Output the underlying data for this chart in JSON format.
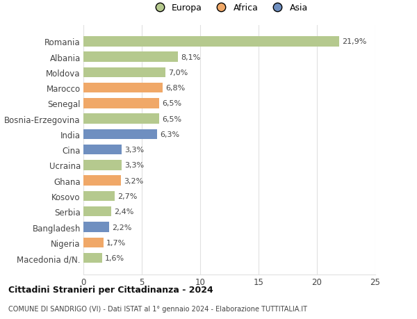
{
  "countries": [
    "Macedonia d/N.",
    "Nigeria",
    "Bangladesh",
    "Serbia",
    "Kosovo",
    "Ghana",
    "Ucraina",
    "Cina",
    "India",
    "Bosnia-Erzegovina",
    "Senegal",
    "Marocco",
    "Moldova",
    "Albania",
    "Romania"
  ],
  "values": [
    1.6,
    1.7,
    2.2,
    2.4,
    2.7,
    3.2,
    3.3,
    3.3,
    6.3,
    6.5,
    6.5,
    6.8,
    7.0,
    8.1,
    21.9
  ],
  "labels": [
    "1,6%",
    "1,7%",
    "2,2%",
    "2,4%",
    "2,7%",
    "3,2%",
    "3,3%",
    "3,3%",
    "6,3%",
    "6,5%",
    "6,5%",
    "6,8%",
    "7,0%",
    "8,1%",
    "21,9%"
  ],
  "continents": [
    "Europa",
    "Africa",
    "Asia",
    "Europa",
    "Europa",
    "Africa",
    "Europa",
    "Asia",
    "Asia",
    "Europa",
    "Africa",
    "Africa",
    "Europa",
    "Europa",
    "Europa"
  ],
  "colors": {
    "Europa": "#b5c98e",
    "Africa": "#f0a868",
    "Asia": "#6f8fc0"
  },
  "title1": "Cittadini Stranieri per Cittadinanza - 2024",
  "title2": "COMUNE DI SANDRIGO (VI) - Dati ISTAT al 1° gennaio 2024 - Elaborazione TUTTITALIA.IT",
  "xlim": [
    0,
    25
  ],
  "xticks": [
    0,
    5,
    10,
    15,
    20,
    25
  ],
  "background_color": "#ffffff",
  "grid_color": "#e0e0e0",
  "legend_items": [
    "Europa",
    "Africa",
    "Asia"
  ],
  "legend_colors": [
    "#b5c98e",
    "#f0a868",
    "#6f8fc0"
  ]
}
